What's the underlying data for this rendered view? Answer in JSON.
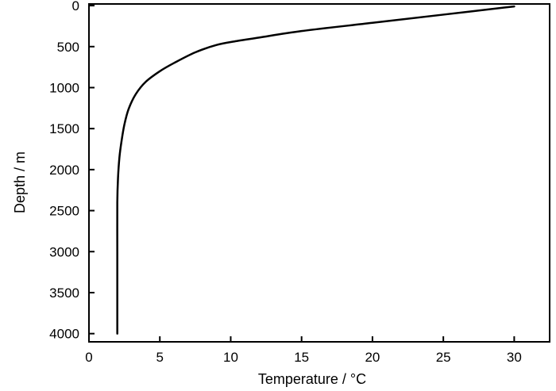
{
  "chart_data": {
    "type": "line",
    "title": "",
    "xlabel": "Temperature / °C",
    "ylabel": "Depth / m",
    "xlim": [
      0,
      32.5
    ],
    "ylim": [
      4100,
      -20
    ],
    "y_inverted": true,
    "xticks": [
      0,
      5,
      10,
      15,
      20,
      25,
      30
    ],
    "yticks": [
      0,
      500,
      1000,
      1500,
      2000,
      2500,
      3000,
      3500,
      4000
    ],
    "grid": false,
    "legend": "none",
    "series": [
      {
        "color": "#000000",
        "x": [
          30,
          25,
          20,
          15,
          12,
          10.5,
          9,
          7.5,
          6,
          5,
          4,
          3.3,
          2.8,
          2.5,
          2.3,
          2.15,
          2.05,
          2.0,
          2.0,
          2.0,
          2.0
        ],
        "y": [
          10,
          110,
          210,
          310,
          390,
          430,
          480,
          570,
          700,
          800,
          930,
          1080,
          1260,
          1450,
          1650,
          1850,
          2100,
          2400,
          3000,
          3500,
          4000
        ]
      }
    ]
  }
}
